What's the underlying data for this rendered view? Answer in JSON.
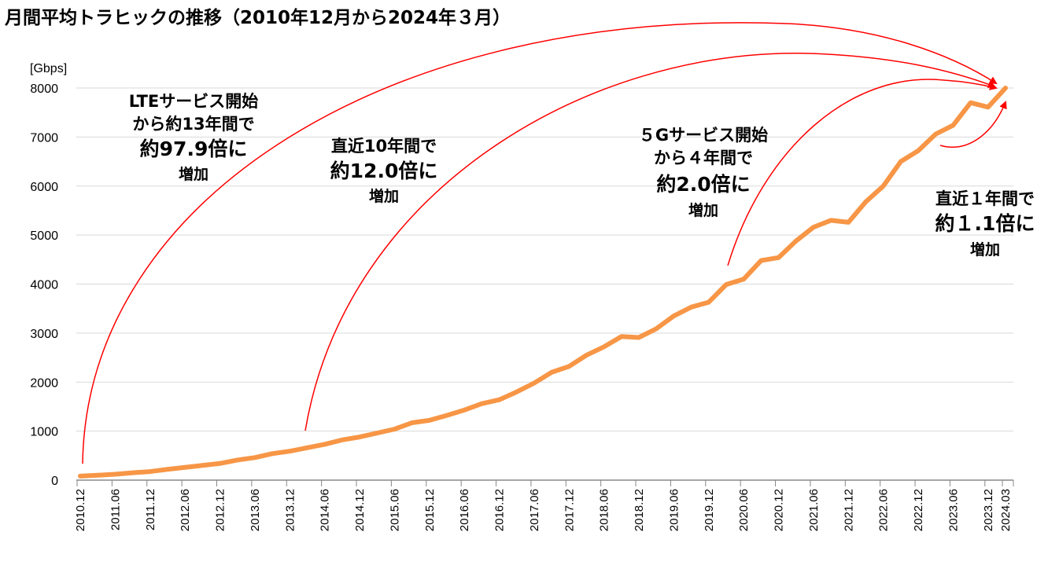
{
  "chart_data": {
    "type": "line",
    "title": "月間平均トラヒックの推移（2010年12月から2024年３月）",
    "ylabel": "[Gbps]",
    "xlabel": "",
    "ylim": [
      0,
      8000
    ],
    "yticks": [
      0,
      1000,
      2000,
      3000,
      4000,
      5000,
      6000,
      7000,
      8000
    ],
    "grid": true,
    "line_color": "#F79646",
    "arrow_color": "#FF0000",
    "x": [
      "2010.12",
      "2011.03",
      "2011.06",
      "2011.09",
      "2011.12",
      "2012.03",
      "2012.06",
      "2012.09",
      "2012.12",
      "2013.03",
      "2013.06",
      "2013.09",
      "2013.12",
      "2014.03",
      "2014.06",
      "2014.09",
      "2014.12",
      "2015.03",
      "2015.06",
      "2015.09",
      "2015.12",
      "2016.03",
      "2016.06",
      "2016.09",
      "2016.12",
      "2017.03",
      "2017.06",
      "2017.09",
      "2017.12",
      "2018.03",
      "2018.06",
      "2018.09",
      "2018.12",
      "2019.03",
      "2019.06",
      "2019.09",
      "2019.12",
      "2020.03",
      "2020.06",
      "2020.09",
      "2020.12",
      "2021.03",
      "2021.06",
      "2021.09",
      "2021.12",
      "2022.03",
      "2022.06",
      "2022.09",
      "2022.12",
      "2023.03",
      "2023.06",
      "2023.09",
      "2023.12",
      "2024.03"
    ],
    "series": [
      {
        "name": "月間平均トラヒック",
        "values": [
          82,
          100,
          120,
          150,
          175,
          220,
          260,
          300,
          340,
          410,
          460,
          540,
          590,
          660,
          730,
          820,
          880,
          960,
          1040,
          1170,
          1220,
          1320,
          1430,
          1560,
          1640,
          1800,
          1980,
          2200,
          2320,
          2550,
          2720,
          2930,
          2910,
          3090,
          3350,
          3530,
          3630,
          3990,
          4100,
          4480,
          4540,
          4880,
          5160,
          5300,
          5260,
          5680,
          6000,
          6500,
          6720,
          7060,
          7240,
          7700,
          7610,
          8000
        ]
      }
    ],
    "xtick_labels": [
      "2010.12",
      "2011.06",
      "2011.12",
      "2012.06",
      "2012.12",
      "2013.06",
      "2013.12",
      "2014.06",
      "2014.12",
      "2015.06",
      "2015.12",
      "2016.06",
      "2016.12",
      "2017.06",
      "2017.12",
      "2018.06",
      "2018.12",
      "2019.06",
      "2019.12",
      "2020.06",
      "2020.12",
      "2021.06",
      "2021.12",
      "2022.06",
      "2022.12",
      "2023.06",
      "2023.12",
      "2024.03"
    ],
    "annotations": [
      {
        "lines": [
          "LTEサービス開始",
          "から約13年間で",
          "約97.9倍に",
          "増加"
        ]
      },
      {
        "lines": [
          "直近10年間で",
          "約12.0倍に",
          "増加"
        ]
      },
      {
        "lines": [
          "５Gサービス開始",
          "から４年間で",
          "約2.0倍に",
          "増加"
        ]
      },
      {
        "lines": [
          "直近１年間で",
          "約１.1倍に",
          "増加"
        ]
      }
    ]
  }
}
